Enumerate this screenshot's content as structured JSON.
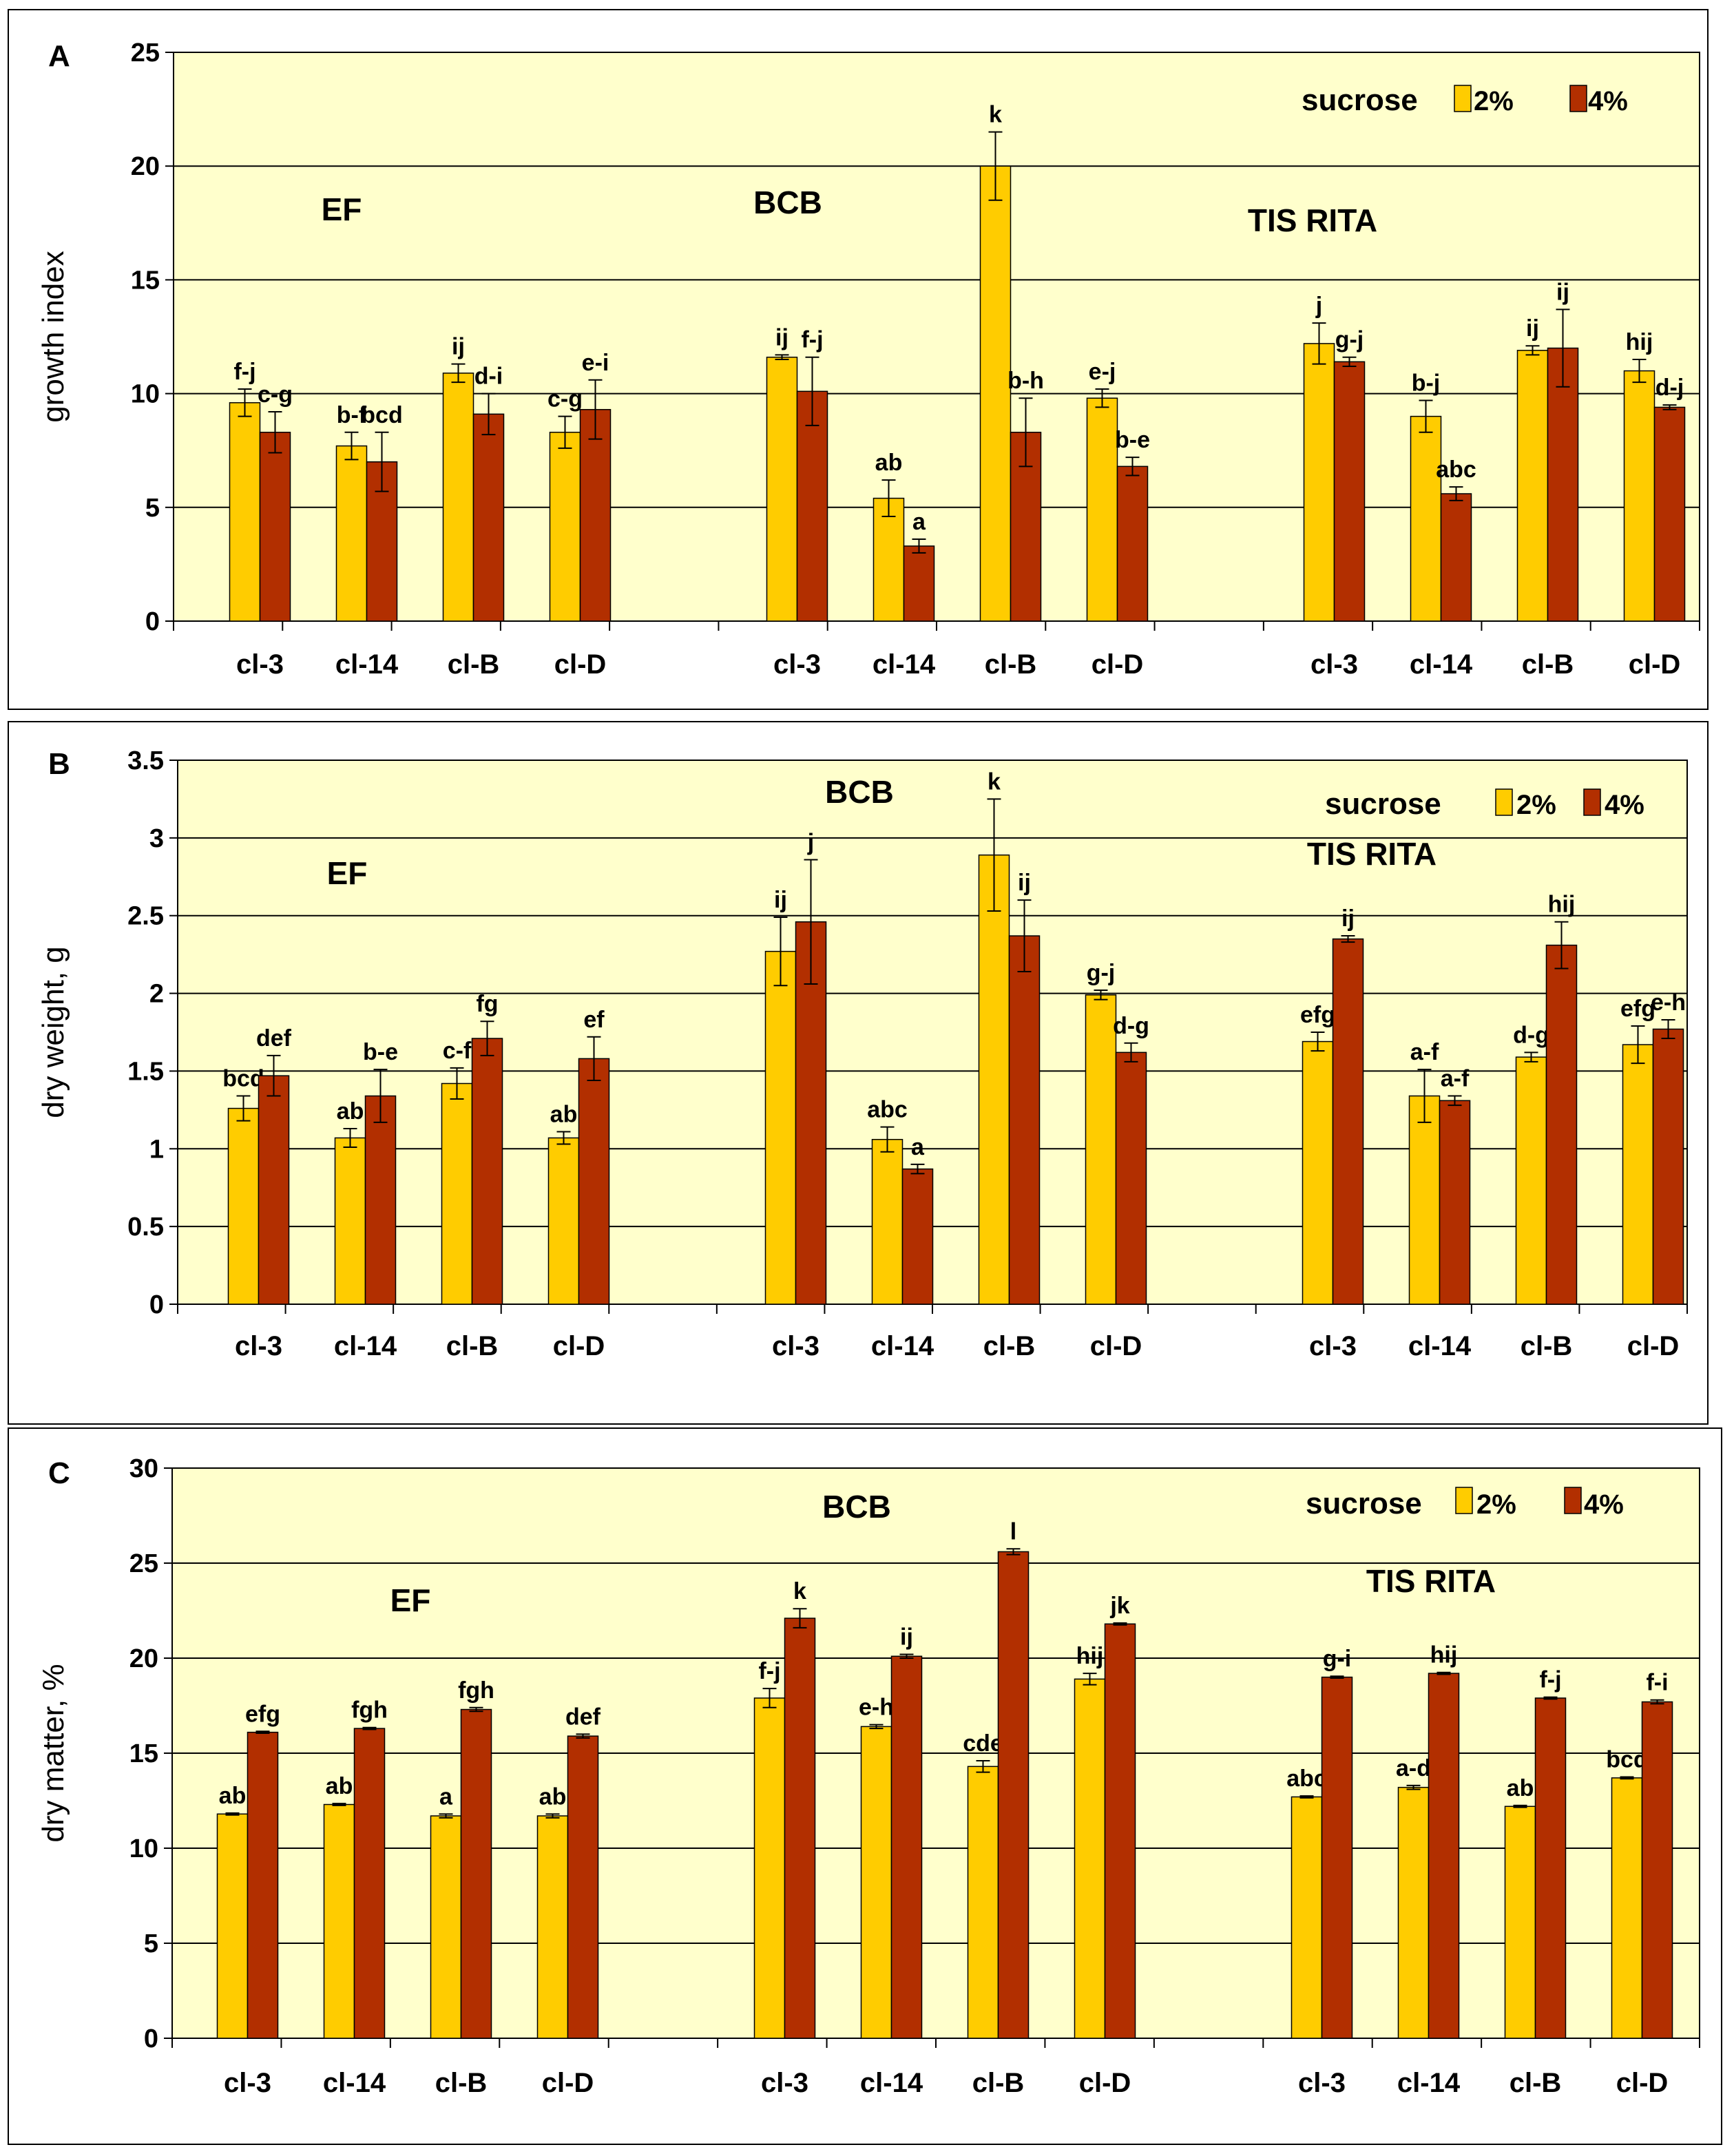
{
  "colors": {
    "plot_bg": "#FFFFCC",
    "series_2": "#FFCC00",
    "series_4": "#B22F00",
    "gridline": "#000000"
  },
  "groups": [
    "EF",
    "BCB",
    "TIS RITA"
  ],
  "clones": [
    "cl-3",
    "cl-14",
    "cl-B",
    "cl-D"
  ],
  "chart_data": [
    {
      "type": "bar",
      "panel": "A",
      "ylabel": "growth index",
      "ylim": [
        0,
        25
      ],
      "yticks": [
        0,
        5,
        10,
        15,
        20,
        25
      ],
      "ytick_labels": [
        "0",
        "5",
        "10",
        "15",
        "20",
        "25"
      ],
      "legend": {
        "label": "sucrose",
        "position": "top-right"
      },
      "grid": true,
      "categories": [
        "cl-3",
        "cl-14",
        "cl-B",
        "cl-D",
        "cl-3",
        "cl-14",
        "cl-B",
        "cl-D",
        "cl-3",
        "cl-14",
        "cl-B",
        "cl-D"
      ],
      "group_labels": [
        "EF",
        "BCB",
        "TIS RITA"
      ],
      "series": [
        {
          "name": "2%",
          "values": [
            9.6,
            7.7,
            10.9,
            8.3,
            11.6,
            5.4,
            20.0,
            9.8,
            12.2,
            9.0,
            11.9,
            11.0
          ],
          "errors": [
            0.6,
            0.6,
            0.4,
            0.7,
            0.1,
            0.8,
            1.5,
            0.4,
            0.9,
            0.7,
            0.2,
            0.5
          ],
          "letters": [
            "f-j",
            "b-f",
            "ij",
            "c-g",
            "ij",
            "ab",
            "k",
            "e-j",
            "j",
            "b-j",
            "ij",
            "hij"
          ]
        },
        {
          "name": "4%",
          "values": [
            8.3,
            7.0,
            9.1,
            9.3,
            10.1,
            3.3,
            8.3,
            6.8,
            11.4,
            5.6,
            12.0,
            9.4
          ],
          "errors": [
            0.9,
            1.3,
            0.9,
            1.3,
            1.5,
            0.3,
            1.5,
            0.4,
            0.2,
            0.3,
            1.7,
            0.1
          ],
          "letters": [
            "c-g",
            "bcd",
            "d-i",
            "e-i",
            "f-j",
            "a",
            "b-h",
            "b-e",
            "g-j",
            "abc",
            "ij",
            "d-j"
          ]
        }
      ]
    },
    {
      "type": "bar",
      "panel": "B",
      "ylabel": "dry weight, g",
      "ylim": [
        0,
        3.5
      ],
      "yticks": [
        0,
        0.5,
        1,
        1.5,
        2,
        2.5,
        3,
        3.5
      ],
      "ytick_labels": [
        "0",
        "0.5",
        "1",
        "1.5",
        "2",
        "2.5",
        "3",
        "3.5"
      ],
      "legend": {
        "label": "sucrose",
        "position": "top-right"
      },
      "grid": true,
      "categories": [
        "cl-3",
        "cl-14",
        "cl-B",
        "cl-D",
        "cl-3",
        "cl-14",
        "cl-B",
        "cl-D",
        "cl-3",
        "cl-14",
        "cl-B",
        "cl-D"
      ],
      "group_labels": [
        "EF",
        "BCB",
        "TIS RITA"
      ],
      "series": [
        {
          "name": "2%",
          "values": [
            1.26,
            1.07,
            1.42,
            1.07,
            2.27,
            1.06,
            2.89,
            1.99,
            1.69,
            1.34,
            1.59,
            1.67
          ],
          "errors": [
            0.08,
            0.06,
            0.1,
            0.04,
            0.22,
            0.08,
            0.36,
            0.03,
            0.06,
            0.17,
            0.03,
            0.12
          ],
          "letters": [
            "bcd",
            "ab",
            "c-f",
            "ab",
            "ij",
            "abc",
            "k",
            "g-j",
            "efg",
            "a-f",
            "d-g",
            "efg"
          ]
        },
        {
          "name": "4%",
          "values": [
            1.47,
            1.34,
            1.71,
            1.58,
            2.46,
            0.87,
            2.37,
            1.62,
            2.35,
            1.31,
            2.31,
            1.77
          ],
          "errors": [
            0.13,
            0.17,
            0.11,
            0.14,
            0.4,
            0.03,
            0.23,
            0.06,
            0.02,
            0.03,
            0.15,
            0.06
          ],
          "letters": [
            "def",
            "b-e",
            "fg",
            "ef",
            "j",
            "a",
            "ij",
            "d-g",
            "ij",
            "a-f",
            "hij",
            "e-h"
          ]
        }
      ]
    },
    {
      "type": "bar",
      "panel": "C",
      "ylabel": "dry matter, %",
      "ylim": [
        0,
        30
      ],
      "yticks": [
        0,
        5,
        10,
        15,
        20,
        25,
        30
      ],
      "ytick_labels": [
        "0",
        "5",
        "10",
        "15",
        "20",
        "25",
        "30"
      ],
      "legend": {
        "label": "sucrose",
        "position": "top-right"
      },
      "grid": true,
      "categories": [
        "cl-3",
        "cl-14",
        "cl-B",
        "cl-D",
        "cl-3",
        "cl-14",
        "cl-B",
        "cl-D",
        "cl-3",
        "cl-14",
        "cl-B",
        "cl-D"
      ],
      "group_labels": [
        "EF",
        "BCB",
        "TIS RITA"
      ],
      "series": [
        {
          "name": "2%",
          "values": [
            11.8,
            12.3,
            11.7,
            11.7,
            17.9,
            16.4,
            14.3,
            18.9,
            12.7,
            13.2,
            12.2,
            13.7
          ],
          "errors": [
            0.05,
            0.05,
            0.1,
            0.1,
            0.5,
            0.1,
            0.3,
            0.3,
            0.05,
            0.1,
            0.05,
            0.05
          ],
          "letters": [
            "ab",
            "ab",
            "a",
            "ab",
            "f-j",
            "e-h",
            "cde",
            "hij",
            "abc",
            "a-d",
            "ab",
            "bcd"
          ]
        },
        {
          "name": "4%",
          "values": [
            16.1,
            16.3,
            17.3,
            15.9,
            22.1,
            20.1,
            25.6,
            21.8,
            19.0,
            19.2,
            17.9,
            17.7
          ],
          "errors": [
            0.05,
            0.05,
            0.1,
            0.1,
            0.5,
            0.1,
            0.15,
            0.05,
            0.05,
            0.05,
            0.05,
            0.1
          ],
          "letters": [
            "efg",
            "fgh",
            "fgh",
            "def",
            "k",
            "ij",
            "l",
            "jk",
            "g-i",
            "hij",
            "f-j",
            "f-i"
          ]
        }
      ]
    }
  ]
}
